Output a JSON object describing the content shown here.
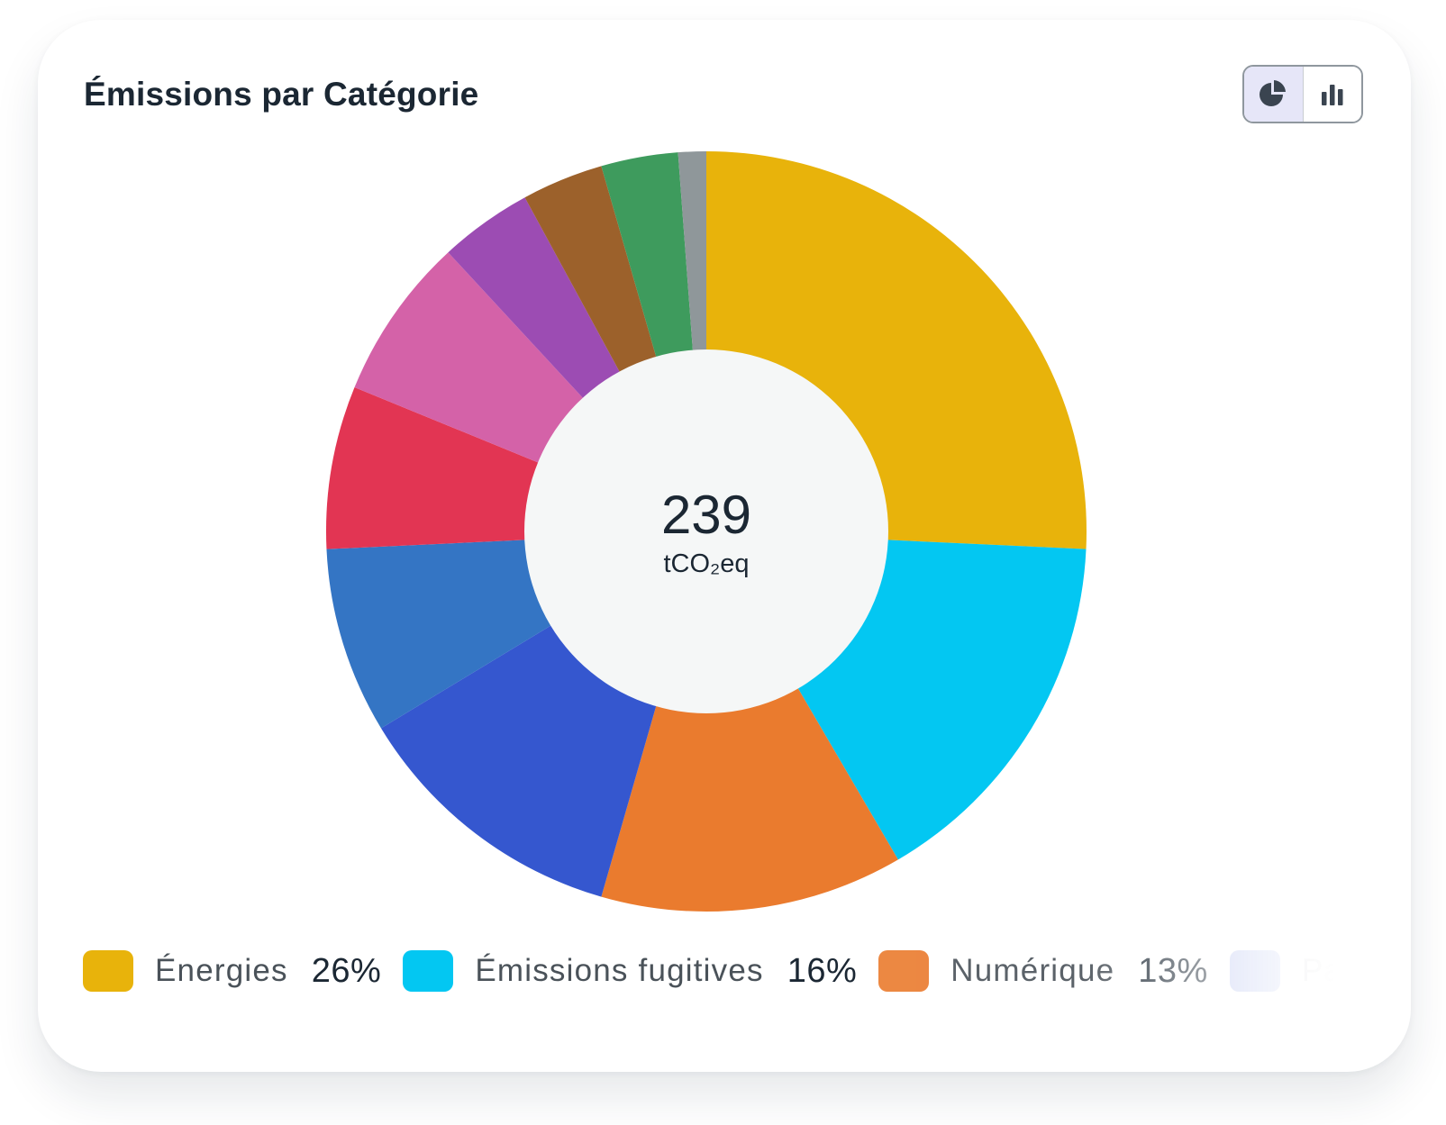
{
  "card": {
    "title": "Émissions par Catégorie"
  },
  "view_toggle": {
    "options": [
      {
        "icon": "pie-chart-icon",
        "selected": true
      },
      {
        "icon": "bar-chart-icon",
        "selected": false
      }
    ]
  },
  "colors": {
    "title": "#1b2733",
    "toggle_active_bg": "#e6e6f8",
    "toggle_icon": "#3a4450",
    "center_circle": "#f5f7f7"
  },
  "chart_data": {
    "type": "donut",
    "center_value": "239",
    "center_unit": "tCO₂eq",
    "slices": [
      {
        "label": "Énergies",
        "percent": 26,
        "color": "#e8b30b"
      },
      {
        "label": "Émissions fugitives",
        "percent": 16,
        "color": "#03c7f2"
      },
      {
        "label": "Numérique",
        "percent": 13,
        "color": "#ea7b2e"
      },
      {
        "label": "",
        "percent": 12,
        "color": "#3557cf"
      },
      {
        "label": "",
        "percent": 8,
        "color": "#3475c4"
      },
      {
        "label": "",
        "percent": 7,
        "color": "#e23553"
      },
      {
        "label": "",
        "percent": 7,
        "color": "#d462a8"
      },
      {
        "label": "",
        "percent": 4,
        "color": "#9c4cb3"
      },
      {
        "label": "",
        "percent": 3.5,
        "color": "#9c612b"
      },
      {
        "label": "",
        "percent": 3.3,
        "color": "#3e9b5d"
      },
      {
        "label": "",
        "percent": 1.2,
        "color": "#8f979a"
      }
    ]
  },
  "legend": {
    "items": [
      {
        "label": "Énergies",
        "percent": "26%",
        "color": "#e8b30b",
        "opacity": 1
      },
      {
        "label": "Émissions fugitives",
        "percent": "16%",
        "color": "#03c7f2",
        "opacity": 1
      },
      {
        "label": "Numérique",
        "percent": "13%",
        "color": "#ea7b2e",
        "opacity": 0.9
      },
      {
        "label": "Pa",
        "percent": "",
        "color": "#3557cf",
        "opacity": 0.3
      }
    ]
  }
}
